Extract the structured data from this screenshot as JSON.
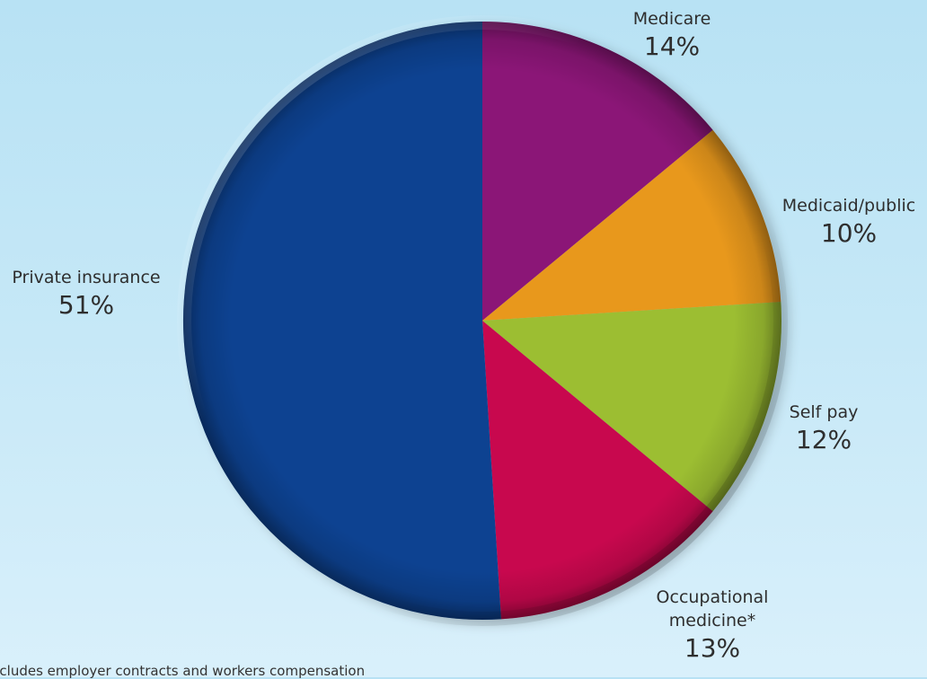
{
  "chart_data": {
    "type": "pie",
    "title": "",
    "slices": [
      {
        "name": "Medicare",
        "value": 14,
        "label": "14%",
        "color": "#8b1677"
      },
      {
        "name": "Medicaid/public",
        "value": 10,
        "label": "10%",
        "color": "#e8981c"
      },
      {
        "name": "Self pay",
        "value": 12,
        "label": "12%",
        "color": "#9cbe32"
      },
      {
        "name": "Occupational medicine*",
        "label_lines": [
          "Occupational",
          "medicine*"
        ],
        "value": 13,
        "label": "13%",
        "color": "#c8084e"
      },
      {
        "name": "Private insurance",
        "value": 51,
        "label": "51%",
        "color": "#0d4291"
      }
    ],
    "footnote": "*Includes employer contracts and workers compensation"
  }
}
